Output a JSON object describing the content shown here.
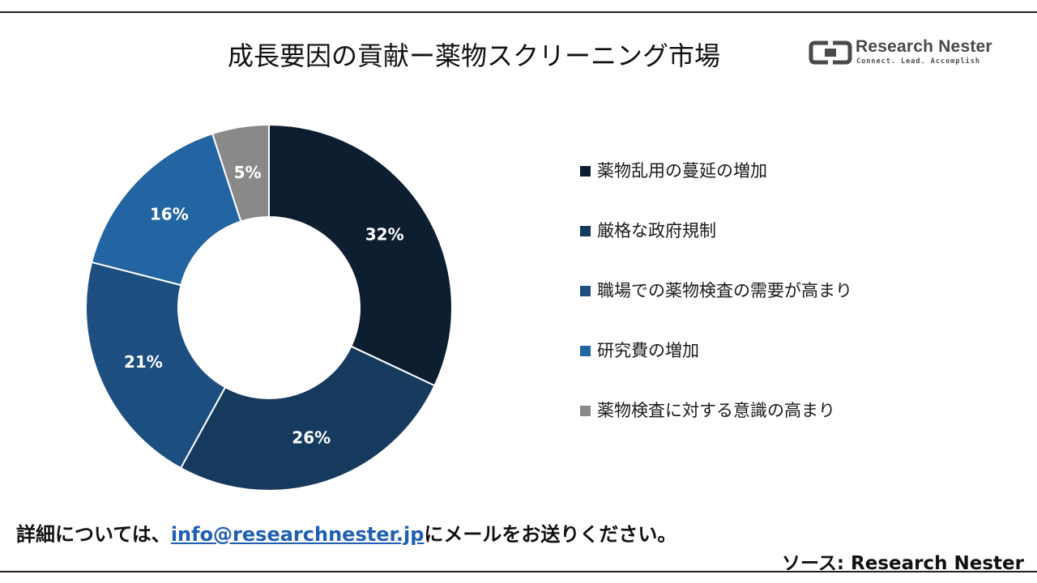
{
  "header": {
    "title": "成長要因の貢献ー薬物スクリーニング市場"
  },
  "logo": {
    "name": "Research Nester",
    "tagline": "Connect. Lead. Accomplish"
  },
  "chart_data": {
    "type": "pie",
    "style": "donut",
    "categories": [
      "薬物乱用の蔓延の増加",
      "厳格な政府規制",
      "職場での薬物検査の需要が高まり",
      "研究費の増加",
      "薬物検査に対する意識の高まり"
    ],
    "values": [
      32,
      26,
      21,
      16,
      5
    ],
    "value_labels": [
      "32%",
      "26%",
      "21%",
      "16%",
      "5%"
    ],
    "colors": [
      "#0d1e30",
      "#163a5e",
      "#1d4e80",
      "#2364a2",
      "#898989"
    ],
    "legend_position": "right"
  },
  "footer": {
    "note_prefix": "詳細については、",
    "email": "info@researchnester.jp",
    "note_suffix": "にメールをお送りください。",
    "source": "ソース: Research Nester"
  }
}
